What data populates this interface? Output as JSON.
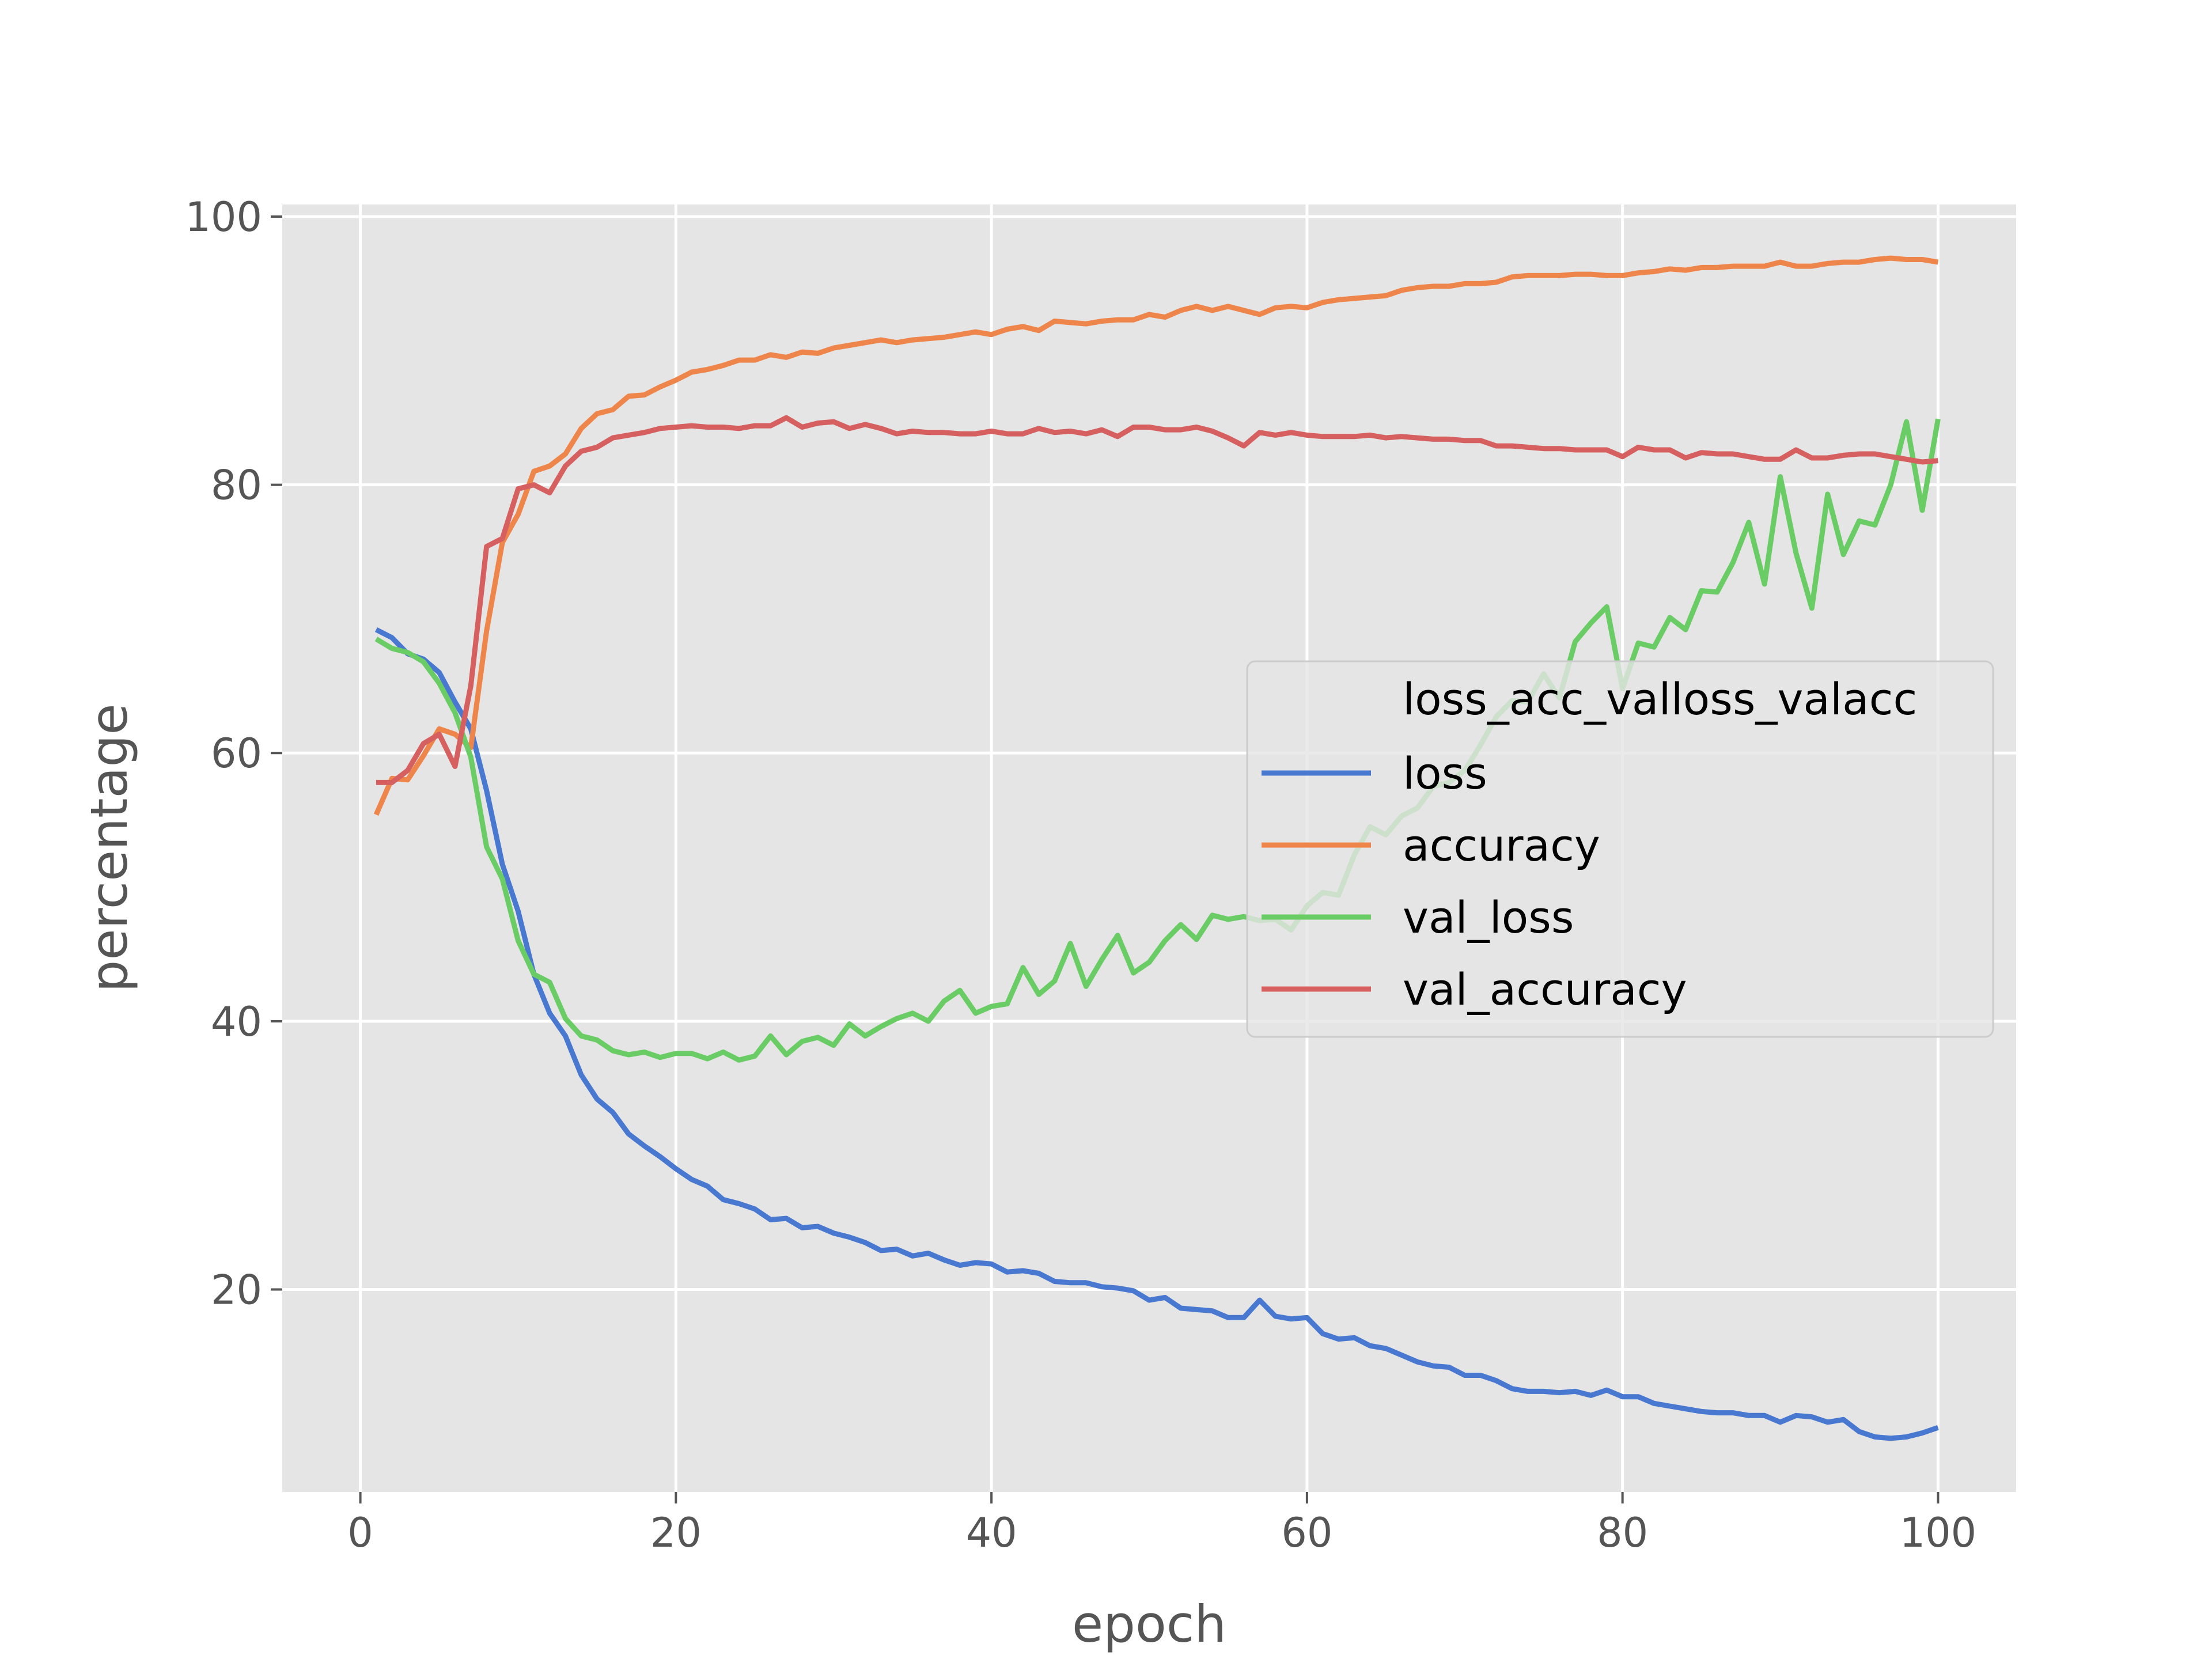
{
  "chart_data": {
    "type": "line",
    "xlabel": "epoch",
    "ylabel": "percentage",
    "xlim": [
      -4.95,
      104.95
    ],
    "ylim": [
      4.9,
      100.9
    ],
    "xticks": [
      0,
      20,
      40,
      60,
      80,
      100
    ],
    "yticks": [
      20,
      40,
      60,
      80,
      100
    ],
    "grid": true,
    "legend": {
      "title": "loss_acc_valloss_valacc",
      "placement": "center-right"
    },
    "colors": {
      "background": "#e5e5e5",
      "grid": "#ffffff",
      "tick": "#555555"
    },
    "x": [
      1,
      2,
      3,
      4,
      5,
      6,
      7,
      8,
      9,
      10,
      11,
      12,
      13,
      14,
      15,
      16,
      17,
      18,
      19,
      20,
      21,
      22,
      23,
      24,
      25,
      26,
      27,
      28,
      29,
      30,
      31,
      32,
      33,
      34,
      35,
      36,
      37,
      38,
      39,
      40,
      41,
      42,
      43,
      44,
      45,
      46,
      47,
      48,
      49,
      50,
      51,
      52,
      53,
      54,
      55,
      56,
      57,
      58,
      59,
      60,
      61,
      62,
      63,
      64,
      65,
      66,
      67,
      68,
      69,
      70,
      71,
      72,
      73,
      74,
      75,
      76,
      77,
      78,
      79,
      80,
      81,
      82,
      83,
      84,
      85,
      86,
      87,
      88,
      89,
      90,
      91,
      92,
      93,
      94,
      95,
      96,
      97,
      98,
      99,
      100
    ],
    "series": [
      {
        "name": "loss",
        "color": "#4878d0",
        "values": [
          69.2,
          68.6,
          67.4,
          67.0,
          66.0,
          63.8,
          61.8,
          57.2,
          51.7,
          48.2,
          43.5,
          40.6,
          38.9,
          36.0,
          34.2,
          33.2,
          31.6,
          30.7,
          29.9,
          29.0,
          28.2,
          27.7,
          26.7,
          26.4,
          26.0,
          25.2,
          25.3,
          24.6,
          24.7,
          24.2,
          23.9,
          23.5,
          22.9,
          23.0,
          22.5,
          22.7,
          22.2,
          21.8,
          22.0,
          21.9,
          21.3,
          21.4,
          21.2,
          20.6,
          20.5,
          20.5,
          20.2,
          20.1,
          19.9,
          19.2,
          19.4,
          18.6,
          18.5,
          18.4,
          17.9,
          17.9,
          19.2,
          18.0,
          17.8,
          17.9,
          16.7,
          16.3,
          16.4,
          15.8,
          15.6,
          15.1,
          14.6,
          14.3,
          14.2,
          13.6,
          13.6,
          13.2,
          12.6,
          12.4,
          12.4,
          12.3,
          12.4,
          12.1,
          12.5,
          12.0,
          12.0,
          11.5,
          11.3,
          11.1,
          10.9,
          10.8,
          10.8,
          10.6,
          10.6,
          10.1,
          10.6,
          10.5,
          10.1,
          10.3,
          9.4,
          9.0,
          8.9,
          9.0,
          9.3,
          9.7
        ]
      },
      {
        "name": "accuracy",
        "color": "#ee854a",
        "values": [
          55.4,
          58.1,
          58.0,
          59.8,
          61.8,
          61.4,
          60.4,
          69.1,
          75.7,
          77.8,
          81.0,
          81.4,
          82.3,
          84.2,
          85.3,
          85.6,
          86.6,
          86.7,
          87.3,
          87.8,
          88.4,
          88.6,
          88.9,
          89.3,
          89.3,
          89.7,
          89.5,
          89.9,
          89.8,
          90.2,
          90.4,
          90.6,
          90.8,
          90.6,
          90.8,
          90.9,
          91.0,
          91.2,
          91.4,
          91.2,
          91.6,
          91.8,
          91.5,
          92.2,
          92.1,
          92.0,
          92.2,
          92.3,
          92.3,
          92.7,
          92.5,
          93.0,
          93.3,
          93.0,
          93.3,
          93.0,
          92.7,
          93.2,
          93.3,
          93.2,
          93.6,
          93.8,
          93.9,
          94.0,
          94.1,
          94.5,
          94.7,
          94.8,
          94.8,
          95.0,
          95.0,
          95.1,
          95.5,
          95.6,
          95.6,
          95.6,
          95.7,
          95.7,
          95.6,
          95.6,
          95.8,
          95.9,
          96.1,
          96.0,
          96.2,
          96.2,
          96.3,
          96.3,
          96.3,
          96.6,
          96.3,
          96.3,
          96.5,
          96.6,
          96.6,
          96.8,
          96.9,
          96.8,
          96.8,
          96.6
        ]
      },
      {
        "name": "val_loss",
        "color": "#6acc64",
        "values": [
          68.5,
          67.8,
          67.5,
          66.8,
          65.2,
          63.0,
          59.7,
          53.0,
          50.6,
          46.0,
          43.5,
          42.9,
          40.2,
          38.9,
          38.6,
          37.8,
          37.5,
          37.7,
          37.3,
          37.6,
          37.6,
          37.2,
          37.7,
          37.1,
          37.4,
          38.9,
          37.5,
          38.5,
          38.8,
          38.2,
          39.8,
          38.9,
          39.6,
          40.2,
          40.6,
          40.0,
          41.5,
          42.3,
          40.6,
          41.1,
          41.3,
          44.0,
          42.0,
          43.0,
          45.8,
          42.6,
          44.6,
          46.4,
          43.6,
          44.4,
          46.0,
          47.2,
          46.1,
          47.9,
          47.6,
          47.8,
          47.5,
          47.6,
          46.8,
          48.6,
          49.6,
          49.4,
          52.4,
          54.5,
          53.9,
          55.3,
          55.9,
          57.5,
          57.8,
          58.7,
          60.6,
          62.7,
          63.9,
          63.8,
          65.9,
          64.1,
          68.3,
          69.7,
          70.9,
          64.8,
          68.2,
          67.9,
          70.1,
          69.2,
          72.1,
          72.0,
          74.2,
          77.2,
          72.6,
          80.6,
          74.9,
          70.8,
          79.3,
          74.8,
          77.3,
          77.0,
          80.0,
          84.7,
          78.1,
          84.9
        ]
      },
      {
        "name": "val_accuracy",
        "color": "#d65f5f",
        "values": [
          57.8,
          57.8,
          58.7,
          60.7,
          61.4,
          59.0,
          65.0,
          75.4,
          76.0,
          79.7,
          80.0,
          79.4,
          81.4,
          82.5,
          82.8,
          83.5,
          83.7,
          83.9,
          84.2,
          84.3,
          84.4,
          84.3,
          84.3,
          84.2,
          84.4,
          84.4,
          85.0,
          84.3,
          84.6,
          84.7,
          84.2,
          84.5,
          84.2,
          83.8,
          84.0,
          83.9,
          83.9,
          83.8,
          83.8,
          84.0,
          83.8,
          83.8,
          84.2,
          83.9,
          84.0,
          83.8,
          84.1,
          83.6,
          84.3,
          84.3,
          84.1,
          84.1,
          84.3,
          84.0,
          83.5,
          82.9,
          83.9,
          83.7,
          83.9,
          83.7,
          83.6,
          83.6,
          83.6,
          83.7,
          83.5,
          83.6,
          83.5,
          83.4,
          83.4,
          83.3,
          83.3,
          82.9,
          82.9,
          82.8,
          82.7,
          82.7,
          82.6,
          82.6,
          82.6,
          82.1,
          82.8,
          82.6,
          82.6,
          82.0,
          82.4,
          82.3,
          82.3,
          82.1,
          81.9,
          81.9,
          82.6,
          82.0,
          82.0,
          82.2,
          82.3,
          82.3,
          82.1,
          81.9,
          81.7,
          81.8
        ]
      }
    ]
  }
}
